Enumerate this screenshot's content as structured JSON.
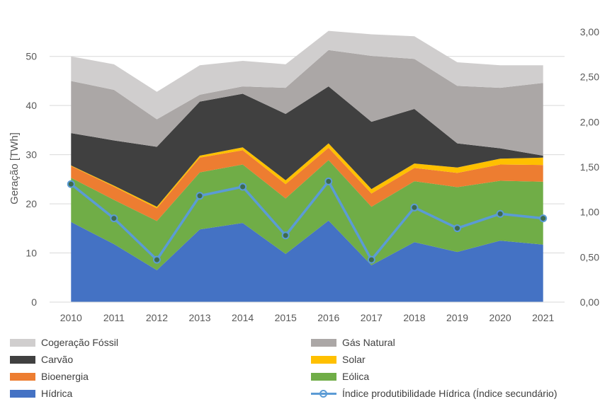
{
  "chart_data": {
    "type": "area",
    "stacked": true,
    "x": [
      "2010",
      "2011",
      "2012",
      "2013",
      "2014",
      "2015",
      "2016",
      "2017",
      "2018",
      "2019",
      "2020",
      "2021"
    ],
    "ylabel": "Geração [TWh]",
    "ylim": [
      0,
      55
    ],
    "yticks": [
      "0",
      "10",
      "20",
      "30",
      "40",
      "50"
    ],
    "y2lim": [
      0,
      3.0
    ],
    "y2ticks": [
      "0,00",
      "0,50",
      "1,00",
      "1,50",
      "2,00",
      "2,50",
      "3,00"
    ],
    "grid": true,
    "legend_position": "bottom",
    "series": [
      {
        "name": "Hídrica",
        "color": "#4472C4",
        "values": [
          16.3,
          11.8,
          6.5,
          14.8,
          16.1,
          9.8,
          16.6,
          7.5,
          12.2,
          10.2,
          12.5,
          11.7
        ]
      },
      {
        "name": "Eólica",
        "color": "#70AD47",
        "values": [
          9.0,
          9.0,
          10.0,
          11.6,
          11.9,
          11.3,
          12.3,
          11.9,
          12.4,
          13.2,
          12.2,
          12.8
        ]
      },
      {
        "name": "Bioenergia",
        "color": "#ED7D31",
        "values": [
          2.4,
          2.7,
          2.6,
          3.0,
          2.9,
          2.9,
          2.5,
          2.7,
          2.7,
          2.9,
          3.3,
          3.4
        ]
      },
      {
        "name": "Solar",
        "color": "#FFC000",
        "values": [
          0.1,
          0.2,
          0.3,
          0.4,
          0.6,
          0.8,
          0.9,
          0.9,
          0.9,
          1.1,
          1.2,
          1.5
        ]
      },
      {
        "name": "Carvão",
        "color": "#404040",
        "values": [
          6.6,
          9.2,
          12.2,
          11.0,
          10.9,
          13.5,
          11.6,
          13.7,
          11.1,
          4.9,
          2.1,
          0.4
        ]
      },
      {
        "name": "Gás Natural",
        "color": "#ABA7A6",
        "values": [
          10.6,
          10.3,
          5.6,
          1.4,
          1.5,
          5.3,
          7.4,
          13.4,
          10.2,
          11.7,
          12.3,
          14.8
        ]
      },
      {
        "name": "Cogeração Fóssil",
        "color": "#D0CECE",
        "values": [
          5.0,
          5.2,
          5.6,
          6.0,
          5.2,
          4.8,
          3.9,
          4.4,
          4.6,
          4.8,
          4.6,
          3.6
        ]
      }
    ],
    "secondary_series": {
      "name": "Índice produtibilidade Hídrica (Índice secundário)",
      "color": "#5B9BD5",
      "marker_color": "#3E6B4E",
      "axis": "secondary",
      "values": [
        1.31,
        0.93,
        0.47,
        1.18,
        1.28,
        0.74,
        1.34,
        0.47,
        1.05,
        0.82,
        0.98,
        0.93
      ]
    }
  },
  "legend": [
    {
      "label": "Cogeração Fóssil",
      "color": "#D0CECE",
      "kind": "area"
    },
    {
      "label": "Gás Natural",
      "color": "#ABA7A6",
      "kind": "area"
    },
    {
      "label": "Carvão",
      "color": "#404040",
      "kind": "area"
    },
    {
      "label": "Solar",
      "color": "#FFC000",
      "kind": "area"
    },
    {
      "label": "Bioenergia",
      "color": "#ED7D31",
      "kind": "area"
    },
    {
      "label": "Eólica",
      "color": "#70AD47",
      "kind": "area"
    },
    {
      "label": "Hídrica",
      "color": "#4472C4",
      "kind": "area"
    },
    {
      "label": "Índice produtibilidade Hídrica (Índice secundário)",
      "color": "#5B9BD5",
      "kind": "line"
    }
  ]
}
